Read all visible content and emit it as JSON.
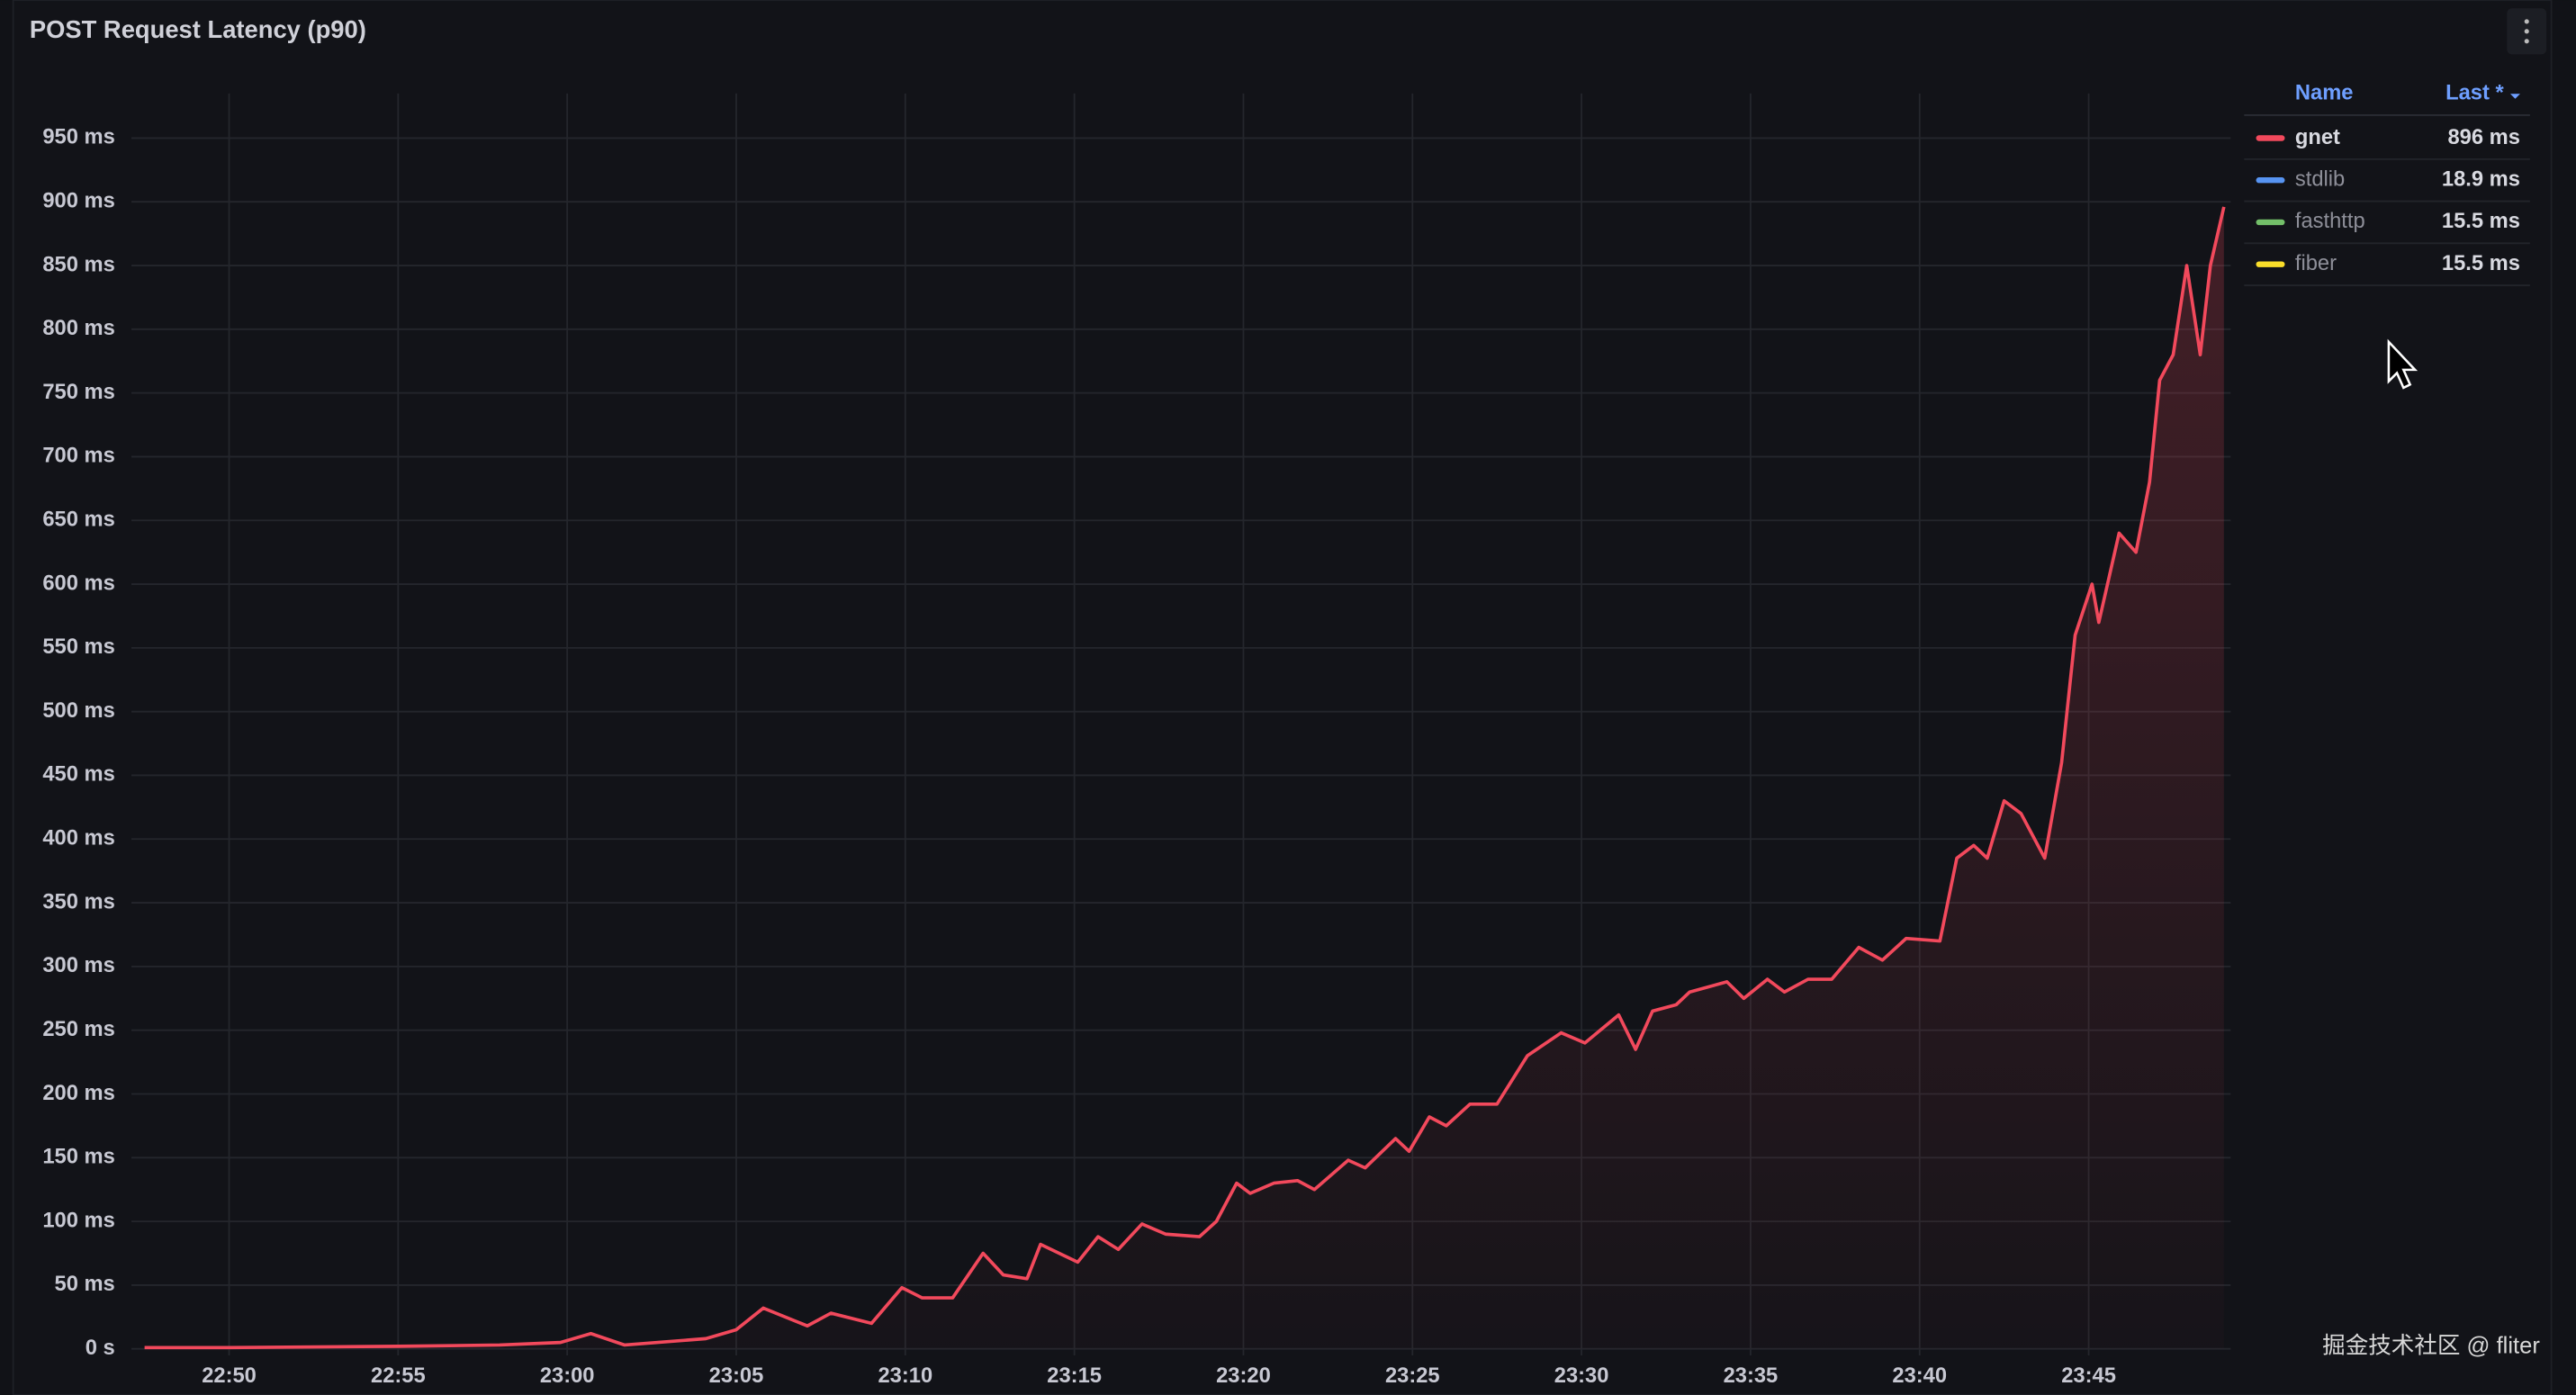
{
  "chart_data": {
    "type": "line",
    "title": "POST Request Latency (p90)",
    "x": [
      1367.5,
      1370,
      1375,
      1378,
      1379.8,
      1380.7,
      1381.7,
      1384.1,
      1385.0,
      1385.8,
      1387.1,
      1387.8,
      1389.0,
      1389.9,
      1390.5,
      1391.4,
      1392.3,
      1392.9,
      1393.6,
      1394.0,
      1395.1,
      1395.7,
      1396.3,
      1397.0,
      1397.7,
      1398.7,
      1399.2,
      1399.8,
      1400.2,
      1400.9,
      1401.6,
      1402.1,
      1403.1,
      1403.6,
      1404.5,
      1404.9,
      1405.5,
      1406.0,
      1406.7,
      1407.5,
      1408.4,
      1409.4,
      1410.1,
      1411.1,
      1411.6,
      1412.1,
      1412.8,
      1413.2,
      1414.3,
      1414.8,
      1415.5,
      1416.0,
      1416.7,
      1417.4,
      1418.2,
      1418.9,
      1419.6,
      1420.6,
      1421.1,
      1421.6,
      1422.0,
      1422.5,
      1423.0,
      1423.7,
      1424.2,
      1424.6,
      1425.1,
      1425.3,
      1425.9,
      1426.4,
      1426.8,
      1427.1,
      1427.5,
      1427.9,
      1428.3,
      1428.6,
      1429.0
    ],
    "series": [
      {
        "name": "gnet",
        "color": "#f2495c",
        "last": 896,
        "last_label": "896 ms",
        "values": [
          1,
          1,
          2,
          3,
          5,
          12,
          3,
          8,
          15,
          32,
          18,
          28,
          20,
          48,
          40,
          40,
          75,
          58,
          55,
          82,
          68,
          88,
          78,
          98,
          90,
          88,
          100,
          130,
          122,
          130,
          132,
          125,
          148,
          142,
          165,
          155,
          182,
          175,
          192,
          192,
          230,
          248,
          240,
          262,
          235,
          265,
          270,
          280,
          288,
          275,
          290,
          280,
          290,
          290,
          315,
          305,
          322,
          320,
          385,
          395,
          385,
          430,
          420,
          385,
          460,
          560,
          600,
          570,
          640,
          625,
          680,
          760,
          780,
          850,
          780,
          850,
          896
        ]
      },
      {
        "name": "stdlib",
        "color": "#5794f2",
        "last": 18.9,
        "last_label": "18.9 ms"
      },
      {
        "name": "fasthttp",
        "color": "#73bf69",
        "last": 15.5,
        "last_label": "15.5 ms"
      },
      {
        "name": "fiber",
        "color": "#fade2a",
        "last": 15.5,
        "last_label": "15.5 ms"
      }
    ],
    "xlim": [
      1367.5,
      1429.2
    ],
    "xticks": [
      {
        "value": 1370,
        "label": "22:50"
      },
      {
        "value": 1375,
        "label": "22:55"
      },
      {
        "value": 1380,
        "label": "23:00"
      },
      {
        "value": 1385,
        "label": "23:05"
      },
      {
        "value": 1390,
        "label": "23:10"
      },
      {
        "value": 1395,
        "label": "23:15"
      },
      {
        "value": 1400,
        "label": "23:20"
      },
      {
        "value": 1405,
        "label": "23:25"
      },
      {
        "value": 1410,
        "label": "23:30"
      },
      {
        "value": 1415,
        "label": "23:35"
      },
      {
        "value": 1420,
        "label": "23:40"
      },
      {
        "value": 1425,
        "label": "23:45"
      }
    ],
    "ylim": [
      0,
      985
    ],
    "yticks": [
      {
        "value": 0,
        "label": "0 s"
      },
      {
        "value": 50,
        "label": "50 ms"
      },
      {
        "value": 100,
        "label": "100 ms"
      },
      {
        "value": 150,
        "label": "150 ms"
      },
      {
        "value": 200,
        "label": "200 ms"
      },
      {
        "value": 250,
        "label": "250 ms"
      },
      {
        "value": 300,
        "label": "300 ms"
      },
      {
        "value": 350,
        "label": "350 ms"
      },
      {
        "value": 400,
        "label": "400 ms"
      },
      {
        "value": 450,
        "label": "450 ms"
      },
      {
        "value": 500,
        "label": "500 ms"
      },
      {
        "value": 550,
        "label": "550 ms"
      },
      {
        "value": 600,
        "label": "600 ms"
      },
      {
        "value": 650,
        "label": "650 ms"
      },
      {
        "value": 700,
        "label": "700 ms"
      },
      {
        "value": 750,
        "label": "750 ms"
      },
      {
        "value": 800,
        "label": "800 ms"
      },
      {
        "value": 850,
        "label": "850 ms"
      },
      {
        "value": 900,
        "label": "900 ms"
      },
      {
        "value": 950,
        "label": "950 ms"
      }
    ],
    "grid": true,
    "legend": {
      "position": "right",
      "columns": [
        "Name",
        "Last *"
      ]
    },
    "watermark": "掘金技术社区 @ fliter"
  }
}
